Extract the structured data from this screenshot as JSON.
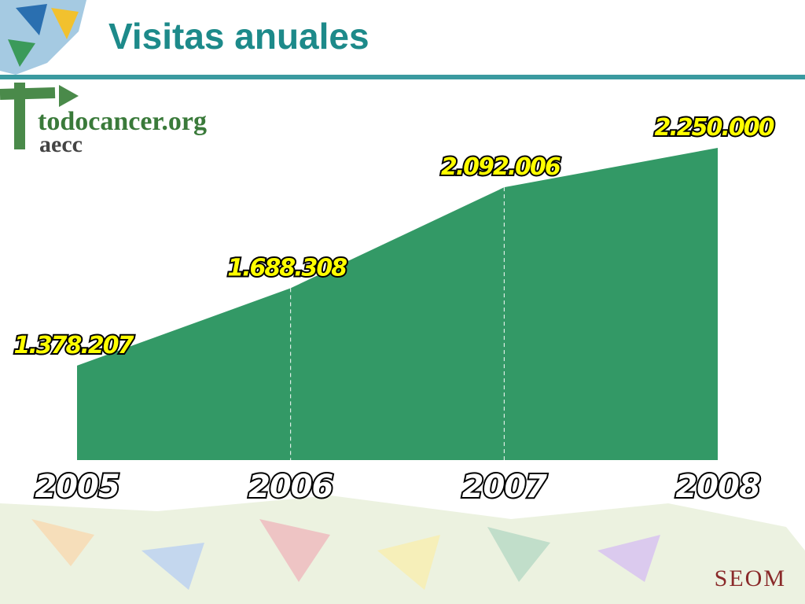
{
  "chart_data": {
    "type": "area",
    "title": "Visitas anuales",
    "categories": [
      "2005",
      "2006",
      "2007",
      "2008"
    ],
    "values": [
      1378207,
      1688308,
      2092006,
      2250000
    ],
    "value_labels": [
      "1.378.207",
      "1.688.308",
      "2.092.006",
      "2.250.000"
    ],
    "color": "#339966",
    "ylim": [
      1000000,
      2250000
    ]
  },
  "logo": {
    "name": "todocancer.org",
    "org": "aecc"
  },
  "footer_logo": "SEOM"
}
